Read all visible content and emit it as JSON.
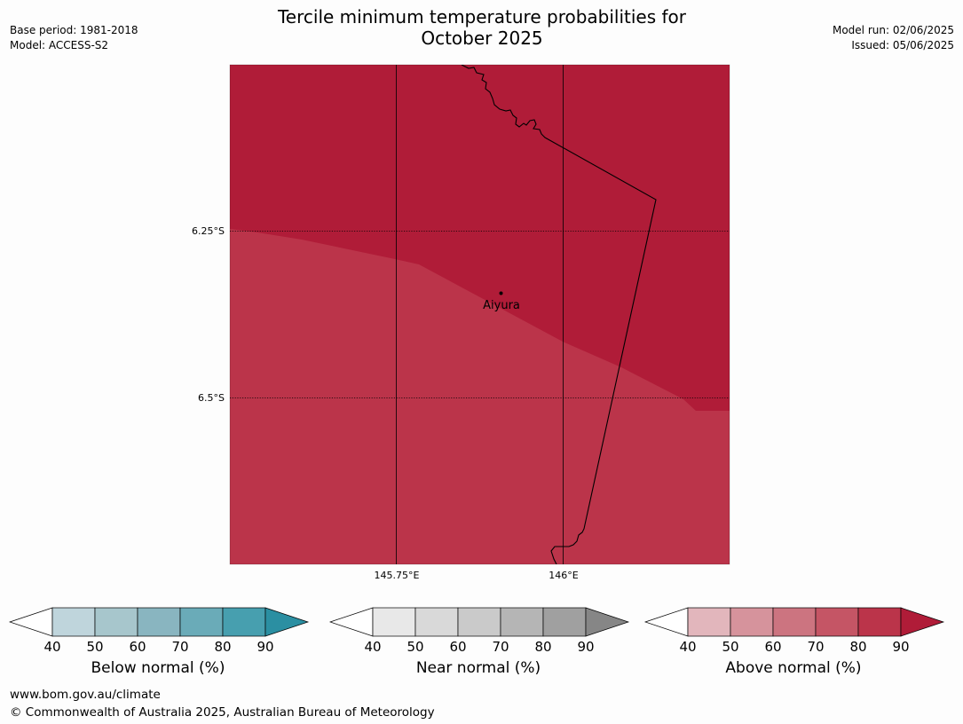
{
  "title_line1": "Tercile minimum temperature probabilities for",
  "title_line2": "October 2025",
  "base_period": "Base period: 1981-2018",
  "model": "Model: ACCESS-S2",
  "model_run": "Model run: 02/06/2025",
  "issued": "Issued: 05/06/2025",
  "map": {
    "lat_labels": [
      "6.25°S",
      "6.5°S"
    ],
    "lon_labels": [
      "145.75°E",
      "146°E"
    ],
    "place": "Aiyura",
    "region_colors": {
      "above_80_90": "#b01c38",
      "above_70_80": "#bb344a"
    },
    "coastline_color": "#000000"
  },
  "colorbars": [
    {
      "title": "Below normal (%)",
      "ticks": [
        "40",
        "50",
        "60",
        "70",
        "80",
        "90"
      ],
      "colors": [
        "#bfd5dc",
        "#a7c6cc",
        "#89b5c0",
        "#6aabb8",
        "#479faf"
      ],
      "over_color": "#2b8fa2",
      "under_color": "#ffffff"
    },
    {
      "title": "Near normal (%)",
      "ticks": [
        "40",
        "50",
        "60",
        "70",
        "80",
        "90"
      ],
      "colors": [
        "#e8e8e8",
        "#d9d9d9",
        "#cacaca",
        "#b5b5b5",
        "#a0a0a0"
      ],
      "over_color": "#868686",
      "under_color": "#ffffff"
    },
    {
      "title": "Above normal (%)",
      "ticks": [
        "40",
        "50",
        "60",
        "70",
        "80",
        "90"
      ],
      "colors": [
        "#e2b6bc",
        "#d6939c",
        "#cc7480",
        "#c55565",
        "#bb344a"
      ],
      "over_color": "#b01c38",
      "under_color": "#ffffff"
    }
  ],
  "footer_url": "www.bom.gov.au/climate",
  "footer_copyright": "© Commonwealth of Australia 2025, Australian Bureau of Meteorology"
}
